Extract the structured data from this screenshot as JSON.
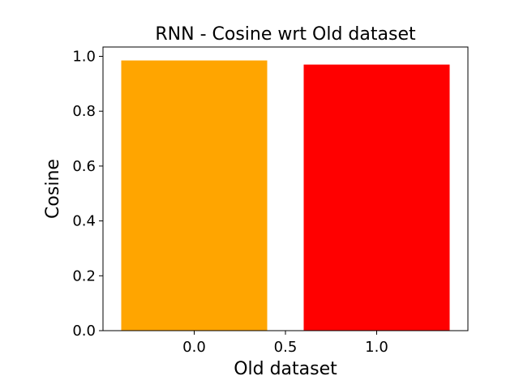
{
  "chart_data": {
    "type": "bar",
    "title": "RNN - Cosine wrt Old dataset",
    "xlabel": "Old dataset",
    "ylabel": "Cosine",
    "bars": [
      {
        "x": 0.0,
        "value": 0.985,
        "color": "#ffa500"
      },
      {
        "x": 1.0,
        "value": 0.97,
        "color": "#ff0000"
      }
    ],
    "bar_width": 0.8,
    "xlim": [
      -0.5,
      1.5
    ],
    "ylim": [
      0,
      1.034
    ],
    "xticks": [
      {
        "value": 0.0,
        "label": "0.0"
      },
      {
        "value": 0.5,
        "label": "0.5"
      },
      {
        "value": 1.0,
        "label": "1.0"
      }
    ],
    "yticks": [
      {
        "value": 0.0,
        "label": "0.0"
      },
      {
        "value": 0.2,
        "label": "0.2"
      },
      {
        "value": 0.4,
        "label": "0.4"
      },
      {
        "value": 0.6,
        "label": "0.6"
      },
      {
        "value": 0.8,
        "label": "0.8"
      },
      {
        "value": 1.0,
        "label": "1.0"
      }
    ],
    "grid": false,
    "legend": "none"
  }
}
